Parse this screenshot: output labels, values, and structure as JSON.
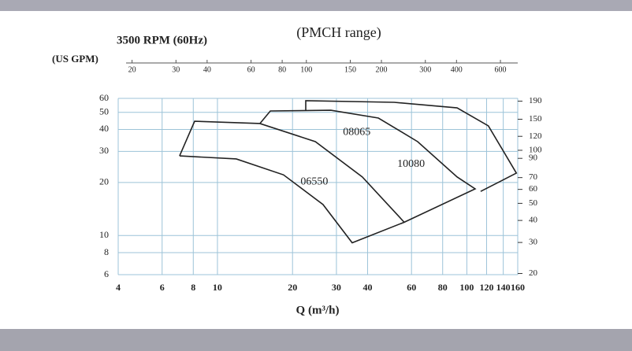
{
  "chart_data": {
    "type": "line",
    "title": "(PMCH range)",
    "subtitle": "3500 RPM (60Hz)",
    "x_label": "Q (m³/h)",
    "x2_label": "(US GPM)",
    "log_scale": true,
    "grid": true,
    "xlim": [
      4,
      160
    ],
    "xticks": [
      4,
      6,
      8,
      10,
      20,
      30,
      40,
      60,
      80,
      100,
      120,
      140,
      160
    ],
    "x2lim": [
      17.6,
      704
    ],
    "x2ticks": [
      20,
      30,
      40,
      60,
      80,
      100,
      150,
      200,
      300,
      400,
      600
    ],
    "ylim": [
      6,
      60
    ],
    "yticks": [
      6,
      8,
      10,
      20,
      30,
      40,
      50,
      60
    ],
    "y2lim": [
      19.7,
      197
    ],
    "y2ticks": [
      20,
      30,
      40,
      50,
      60,
      70,
      90,
      100,
      120,
      150,
      190
    ],
    "series": [
      {
        "name": "06550",
        "color": "#222222",
        "x": [
          7.05,
          11.9,
          18.4,
          26.5,
          34.7,
          56.1,
          38.1,
          24.7,
          14.8,
          8.1,
          7.05
        ],
        "values": [
          28.3,
          27.2,
          22.1,
          15.0,
          9.1,
          11.9,
          21.5,
          34.1,
          43.2,
          44.5,
          28.3
        ]
      },
      {
        "name": "08065",
        "color": "#222222",
        "x": [
          14.8,
          16.3,
          28.5,
          44.2,
          63.5,
          91.4,
          108,
          56.1
        ],
        "values": [
          43.2,
          50.9,
          51.4,
          46.4,
          34.1,
          21.5,
          18.4,
          11.9
        ]
      },
      {
        "name": "10080",
        "color": "#222222",
        "x": [
          22.6,
          22.6,
          51.1,
          91.4,
          122,
          158,
          113.6
        ],
        "values": [
          50.9,
          58.2,
          57.0,
          53.0,
          41.9,
          22.6,
          17.8
        ]
      }
    ]
  }
}
